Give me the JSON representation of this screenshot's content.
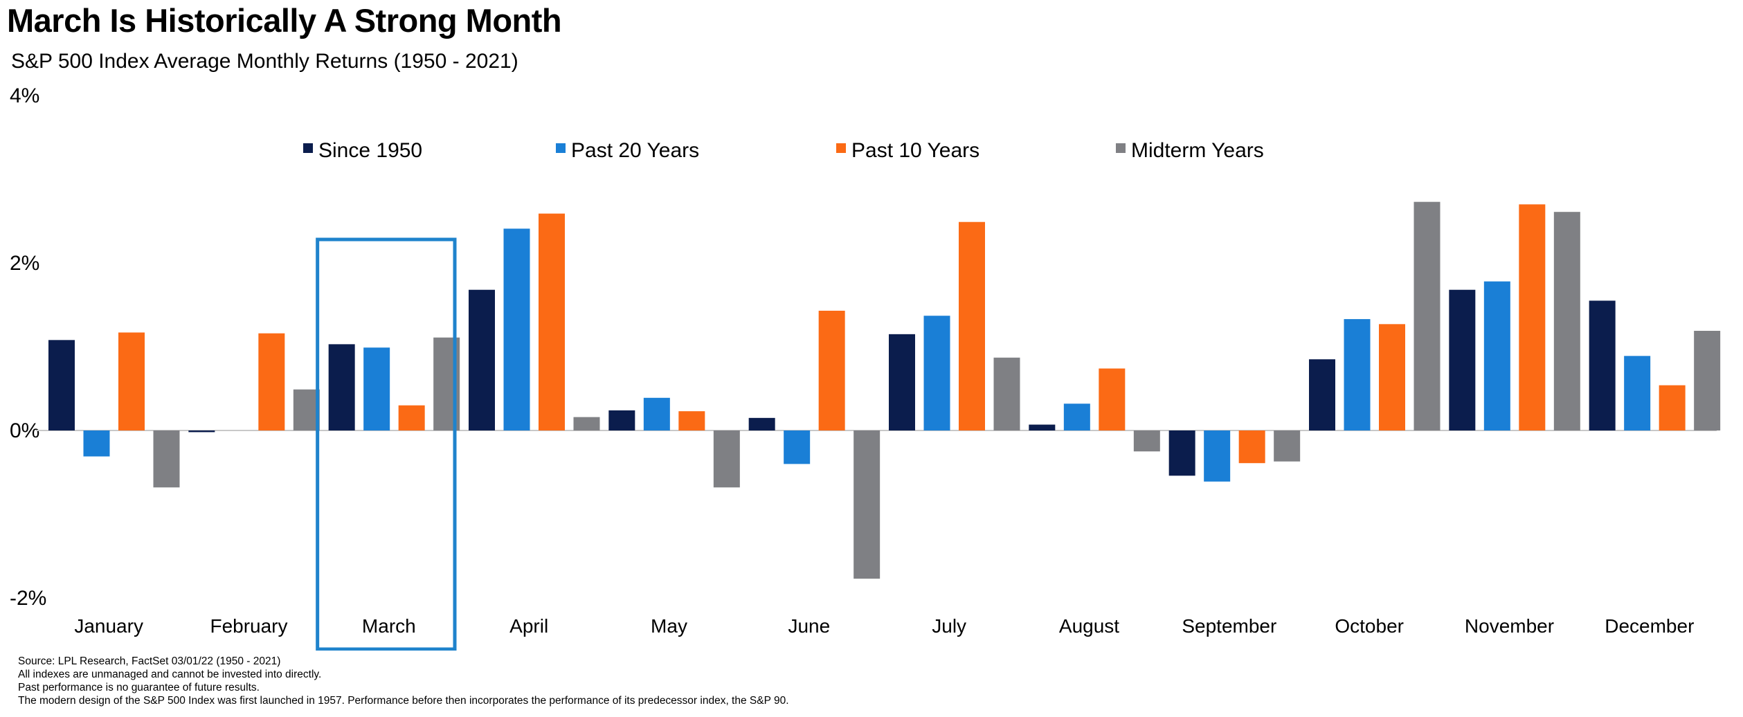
{
  "title": "March Is Historically A Strong Month",
  "subtitle": "S&P 500 Index Average Monthly Returns (1950 - 2021)",
  "colors": {
    "since_1950": "#0b1d4d",
    "past_20": "#1a7fd6",
    "past_10": "#fb6a15",
    "midterm": "#7f8084",
    "highlight": "#1f83cc",
    "axis": "#c8c8c8"
  },
  "chart_data": {
    "type": "bar",
    "title": "March Is Historically A Strong Month",
    "subtitle": "S&P 500 Index Average Monthly Returns (1950 - 2021)",
    "ylim": [
      -2,
      4
    ],
    "yticks": [
      4,
      2,
      0,
      -2
    ],
    "ytick_labels": [
      "4%",
      "2%",
      "0%",
      "-2%"
    ],
    "unit": "%",
    "legend_position": "top",
    "highlighted_category": "March",
    "categories": [
      "January",
      "February",
      "March",
      "April",
      "May",
      "June",
      "July",
      "August",
      "September",
      "October",
      "November",
      "December"
    ],
    "series": [
      {
        "name": "Since 1950",
        "color_key": "since_1950",
        "values": [
          1.08,
          -0.02,
          1.03,
          1.68,
          0.24,
          0.15,
          1.15,
          0.07,
          -0.54,
          0.85,
          1.68,
          1.55
        ]
      },
      {
        "name": "Past 20 Years",
        "color_key": "past_20",
        "values": [
          -0.31,
          0.0,
          0.99,
          2.41,
          0.39,
          -0.4,
          1.37,
          0.32,
          -0.61,
          1.33,
          1.78,
          0.89
        ]
      },
      {
        "name": "Past 10 Years",
        "color_key": "past_10",
        "values": [
          1.17,
          1.16,
          0.3,
          2.59,
          0.23,
          1.43,
          2.49,
          0.74,
          -0.39,
          1.27,
          2.7,
          0.54
        ]
      },
      {
        "name": "Midterm Years",
        "color_key": "midterm",
        "values": [
          -0.68,
          0.49,
          1.11,
          0.16,
          -0.68,
          -1.77,
          0.87,
          -0.25,
          -0.37,
          2.73,
          2.61,
          1.19
        ]
      }
    ]
  },
  "footnotes": [
    "Source: LPL Research, FactSet 03/01/22  (1950 - 2021)",
    "All indexes are unmanaged  and cannot be invested  into directly.",
    "Past performance is no guarantee  of future results.",
    "The modern design of the S&P 500 Index was first launched  in 1957. Performance before then incorporates the performance of its  predecessor index, the S&P 90."
  ]
}
